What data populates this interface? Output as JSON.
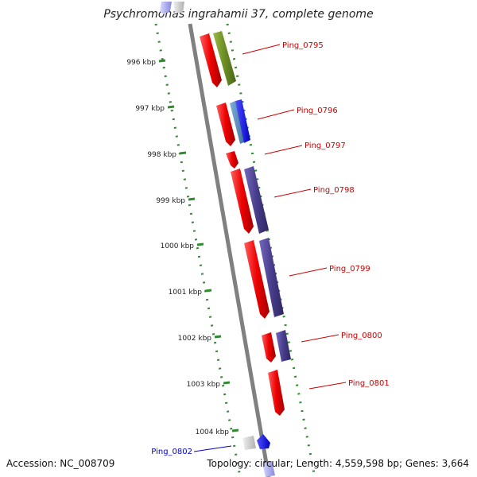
{
  "title": "Psychromonas ingrahamii 37, complete genome",
  "footer": {
    "accession": "Accession: NC_008709",
    "stats": "Topology: circular; Length: 4,559,598 bp; Genes: 3,664"
  },
  "ticks": [
    "996 kbp",
    "997 kbp",
    "998 kbp",
    "999 kbp",
    "1000 kbp",
    "1001 kbp",
    "1002 kbp",
    "1003 kbp",
    "1004 kbp"
  ],
  "gene_labels": [
    {
      "name": "Ping_0795",
      "color": "#cc0000"
    },
    {
      "name": "Ping_0796",
      "color": "#cc0000"
    },
    {
      "name": "Ping_0797",
      "color": "#cc0000"
    },
    {
      "name": "Ping_0798",
      "color": "#cc0000"
    },
    {
      "name": "Ping_0799",
      "color": "#cc0000"
    },
    {
      "name": "Ping_0800",
      "color": "#cc0000"
    },
    {
      "name": "Ping_0801",
      "color": "#cc0000"
    },
    {
      "name": "Ping_0802",
      "color": "#0000cc"
    }
  ],
  "colors": {
    "backbone": "#808080",
    "dotted_track": "#2e8b2e",
    "cds": "#ee0000",
    "olive": "#6b8e23",
    "slate_blue": "#483d8b",
    "steel_blue": "#4682b4",
    "blue": "#0000ff",
    "light_gray": "#cccccc"
  }
}
